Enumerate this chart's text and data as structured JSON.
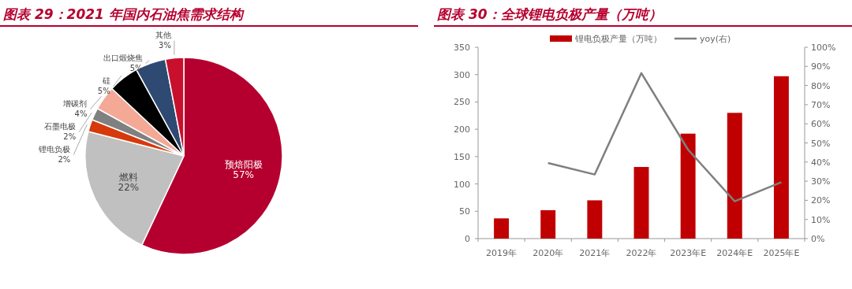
{
  "chart_data": [
    {
      "type": "pie",
      "title": "图表 29：2021 年国内石油焦需求结构",
      "categories": [
        "预焙阳极",
        "燃料",
        "锂电负极",
        "石墨电极",
        "增碳剂",
        "硅",
        "出口煅烧焦",
        "其他"
      ],
      "values": [
        57,
        22,
        2,
        2,
        4,
        5,
        5,
        3
      ],
      "colors": [
        "#b5002f",
        "#c0c0c0",
        "#d63a0a",
        "#808080",
        "#f4a896",
        "#000000",
        "#2e4a72",
        "#c8102e"
      ],
      "value_labels": [
        "57%",
        "22%",
        "2%",
        "2%",
        "4%",
        "5%",
        "5%",
        "3%"
      ]
    },
    {
      "type": "bar",
      "title": "图表 30：全球锂电负极产量（万吨）",
      "categories": [
        "2019年",
        "2020年",
        "2021年",
        "2022年",
        "2023年E",
        "2024年E",
        "2025年E"
      ],
      "legend": "top",
      "series": [
        {
          "name": "锂电负极产量（万吨）",
          "color": "#c00000",
          "values": [
            37,
            52,
            70,
            131,
            192,
            230,
            297
          ]
        },
        {
          "name": "yoy(右)",
          "type": "line",
          "axis": "y2",
          "color": "#7f7f7f",
          "values": [
            null,
            39.5,
            33.5,
            86.5,
            46.5,
            19.5,
            29.5
          ]
        }
      ],
      "ylim": [
        0,
        350
      ],
      "yticks": [
        0,
        50,
        100,
        150,
        200,
        250,
        300,
        350
      ],
      "y2lim": [
        0,
        100
      ],
      "y2ticks": [
        {
          "value": 0,
          "label": "0%"
        },
        {
          "value": 10,
          "label": "10%"
        },
        {
          "value": 20,
          "label": "20%"
        },
        {
          "value": 30,
          "label": "30%"
        },
        {
          "value": 40,
          "label": "40%"
        },
        {
          "value": 50,
          "label": "50%"
        },
        {
          "value": 60,
          "label": "60%"
        },
        {
          "value": 70,
          "label": "70%"
        },
        {
          "value": 80,
          "label": "80%"
        },
        {
          "value": 90,
          "label": "90%"
        },
        {
          "value": 100,
          "label": "100%"
        }
      ]
    }
  ]
}
